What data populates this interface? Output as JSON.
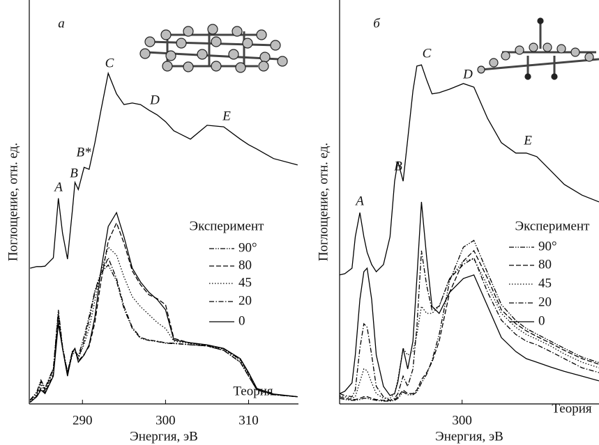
{
  "chart_data": [
    {
      "type": "line",
      "x_label": "Энергия, эВ",
      "y_label": "Поглощение, отн. ед.",
      "xlim": [
        283.6,
        316
      ],
      "xticks": [
        290,
        300,
        310
      ],
      "ylim": [
        0,
        100
      ],
      "annotations": [
        "а",
        "A",
        "B",
        "B*",
        "C",
        "D",
        "E",
        "Теория"
      ],
      "x": [
        283.7,
        284.5,
        285,
        285.5,
        286.5,
        287.1,
        287.6,
        288.2,
        288.8,
        289.1,
        289.5,
        290.2,
        290.8,
        291.5,
        292.2,
        293.1,
        294.1,
        295,
        296,
        297,
        298,
        299,
        300,
        301,
        303,
        305,
        307,
        309,
        310,
        311,
        313,
        315.9
      ],
      "series": [
        {
          "name": "Эксперимент",
          "color": "#000000",
          "linestyle": "solid",
          "values": [
            34.2,
            34.6,
            34.6,
            34.7,
            36.8,
            51.8,
            43,
            36.5,
            49.1,
            55.8,
            54,
            59.6,
            59.1,
            65.8,
            73.7,
            83.3,
            78.1,
            75.4,
            75.8,
            75.4,
            74,
            72.8,
            71.1,
            68.8,
            66.7,
            70.2,
            69.8,
            66.7,
            65.3,
            64.2,
            61.8,
            60.2
          ]
        },
        {
          "name": "90°",
          "color": "#000000",
          "linestyle": "dash-dot-dot",
          "values": [
            1,
            3,
            6,
            4,
            9,
            23.7,
            14.5,
            8,
            13.5,
            13.5,
            12,
            17,
            22,
            28.5,
            33,
            35,
            31,
            24,
            19,
            16.5,
            16,
            15.7,
            15.3,
            15.2,
            14.9,
            14.6,
            13.5,
            10.5,
            7,
            3.5,
            2.3,
            1.8
          ]
        },
        {
          "name": "80",
          "color": "#000000",
          "linestyle": "dashed",
          "values": [
            0.4,
            2,
            4,
            2.8,
            7.5,
            21,
            14,
            7.2,
            13,
            13.8,
            10.8,
            12.5,
            14.5,
            20.5,
            30.5,
            41,
            45.6,
            40.5,
            33.5,
            30,
            27.5,
            26.5,
            25,
            16.5,
            15.3,
            14.8,
            13.9,
            11.2,
            7.7,
            3.8,
            2.4,
            1.8
          ]
        },
        {
          "name": "45",
          "color": "#000000",
          "linestyle": "dotted",
          "values": [
            0.5,
            2.3,
            5,
            3,
            8.5,
            22,
            14,
            7.5,
            12.5,
            13,
            11.5,
            15,
            19,
            26,
            33,
            39.5,
            37.5,
            32,
            27,
            24.5,
            22.5,
            20.5,
            19,
            15.8,
            15.2,
            14.7,
            13.8,
            11,
            7.5,
            3.7,
            2.4,
            1.8
          ]
        },
        {
          "name": "20",
          "color": "#000000",
          "linestyle": "dash-dot",
          "values": [
            0.9,
            2.6,
            5.6,
            3.5,
            8.8,
            22.8,
            14,
            7.9,
            13.2,
            13.2,
            11.4,
            15.8,
            21.1,
            28.1,
            32.5,
            36.8,
            31.6,
            24.6,
            19.3,
            16.7,
            16.1,
            15.8,
            15.4,
            15.3,
            14.9,
            14.6,
            13.5,
            10.5,
            7,
            3.5,
            2.3,
            1.8
          ]
        },
        {
          "name": "0",
          "color": "#000000",
          "linestyle": "solid",
          "values": [
            0.4,
            1.8,
            3.5,
            2.6,
            7,
            20.2,
            14,
            7,
            13.2,
            14,
            10.5,
            12.3,
            14.9,
            21.9,
            33.3,
            44.7,
            48.2,
            42.1,
            34.2,
            30.7,
            28.1,
            26.3,
            23.7,
            16.1,
            15.4,
            14.9,
            14,
            11.4,
            7.9,
            3.9,
            2.5,
            1.8
          ]
        }
      ]
    },
    {
      "type": "line",
      "x_label": "Энергия, эВ",
      "y_label": "Поглощение, отн. ед.",
      "xlim": [
        281.3,
        320.9
      ],
      "xticks": [
        300
      ],
      "ylim": [
        0,
        100
      ],
      "annotations": [
        "б",
        "A",
        "B",
        "C",
        "D",
        "E",
        "Теория"
      ],
      "x": [
        281.3,
        282.1,
        283.2,
        283.7,
        284.4,
        285,
        285.5,
        286.2,
        286.9,
        288,
        289,
        289.7,
        290.2,
        291,
        291.7,
        292.5,
        293.1,
        293.8,
        294.6,
        295.4,
        296.5,
        298.1,
        300.2,
        301.8,
        303.9,
        306,
        308.2,
        309.8,
        311.4,
        313.5,
        315.6,
        318.3,
        320.9
      ],
      "series": [
        {
          "name": "Эксперимент",
          "color": "#000000",
          "linestyle": "solid",
          "values": [
            32.5,
            32.8,
            34.2,
            42.1,
            48.2,
            42.1,
            38.2,
            35.1,
            33.3,
            35.1,
            42.1,
            56.1,
            61.1,
            56.1,
            66.7,
            78.9,
            85.1,
            85.4,
            81.6,
            78.1,
            78.4,
            79.3,
            80.7,
            79.8,
            71.9,
            65.8,
            63.2,
            63.2,
            62.3,
            58.8,
            55.3,
            52.6,
            50.9
          ]
        },
        {
          "name": "90°",
          "color": "#000000",
          "linestyle": "dash-dot-dot",
          "values": [
            1.4,
            1.1,
            0.9,
            0.9,
            1.1,
            1.4,
            1.4,
            1.1,
            0.9,
            0.7,
            0.7,
            0.9,
            1.4,
            3,
            2.3,
            2.3,
            3,
            5.3,
            7.5,
            11,
            17.5,
            31,
            39.5,
            41.2,
            33,
            25,
            21,
            19,
            17.6,
            15.8,
            14,
            11.8,
            10.4
          ]
        },
        {
          "name": "80",
          "color": "#000000",
          "linestyle": "dashed",
          "values": [
            1.8,
            1.4,
            1.1,
            1.1,
            1.4,
            1.8,
            1.8,
            1.4,
            1.1,
            0.9,
            0.9,
            1.1,
            1.8,
            3.5,
            2.6,
            2.6,
            3.5,
            6.1,
            7.9,
            10.5,
            15.8,
            28.1,
            36,
            38.6,
            31.6,
            23.7,
            20.2,
            18.4,
            17,
            15.3,
            13.5,
            11.4,
            10
          ]
        },
        {
          "name": "45",
          "color": "#000000",
          "linestyle": "dotted",
          "values": [
            2.1,
            1.8,
            1.4,
            1.8,
            5.6,
            8.8,
            8.4,
            5.3,
            2.6,
            1.4,
            1.4,
            2.6,
            6.1,
            14,
            12.3,
            13.2,
            17.5,
            24.6,
            22.8,
            22.8,
            24.6,
            31.6,
            36,
            36.5,
            29.8,
            22.8,
            19.3,
            17.5,
            16.3,
            14.6,
            12.6,
            10.5,
            9.1
          ]
        },
        {
          "name": "20",
          "color": "#000000",
          "linestyle": "dash-dot",
          "values": [
            2.6,
            2.1,
            1.8,
            3.5,
            14,
            20.2,
            19.3,
            12.3,
            4.4,
            1.8,
            0.9,
            1.4,
            2.6,
            7,
            4.4,
            8.8,
            19.3,
            38.6,
            29.8,
            23.7,
            24.6,
            31.6,
            35.1,
            36.8,
            28.1,
            21.1,
            17.5,
            15.8,
            14.9,
            13.2,
            11.4,
            9.1,
            7.9
          ]
        },
        {
          "name": "0",
          "color": "#000000",
          "linestyle": "solid",
          "values": [
            2.6,
            3.2,
            5.3,
            12.3,
            26.3,
            33.3,
            34.2,
            26.3,
            12.3,
            4.4,
            2.1,
            2.6,
            5.6,
            14,
            8.8,
            15.8,
            31.6,
            50.9,
            36.8,
            24.6,
            22.8,
            28.1,
            31.6,
            32.5,
            24.6,
            16.7,
            13.2,
            11.4,
            10.5,
            9.3,
            8.2,
            7,
            5.8
          ]
        }
      ]
    }
  ]
}
